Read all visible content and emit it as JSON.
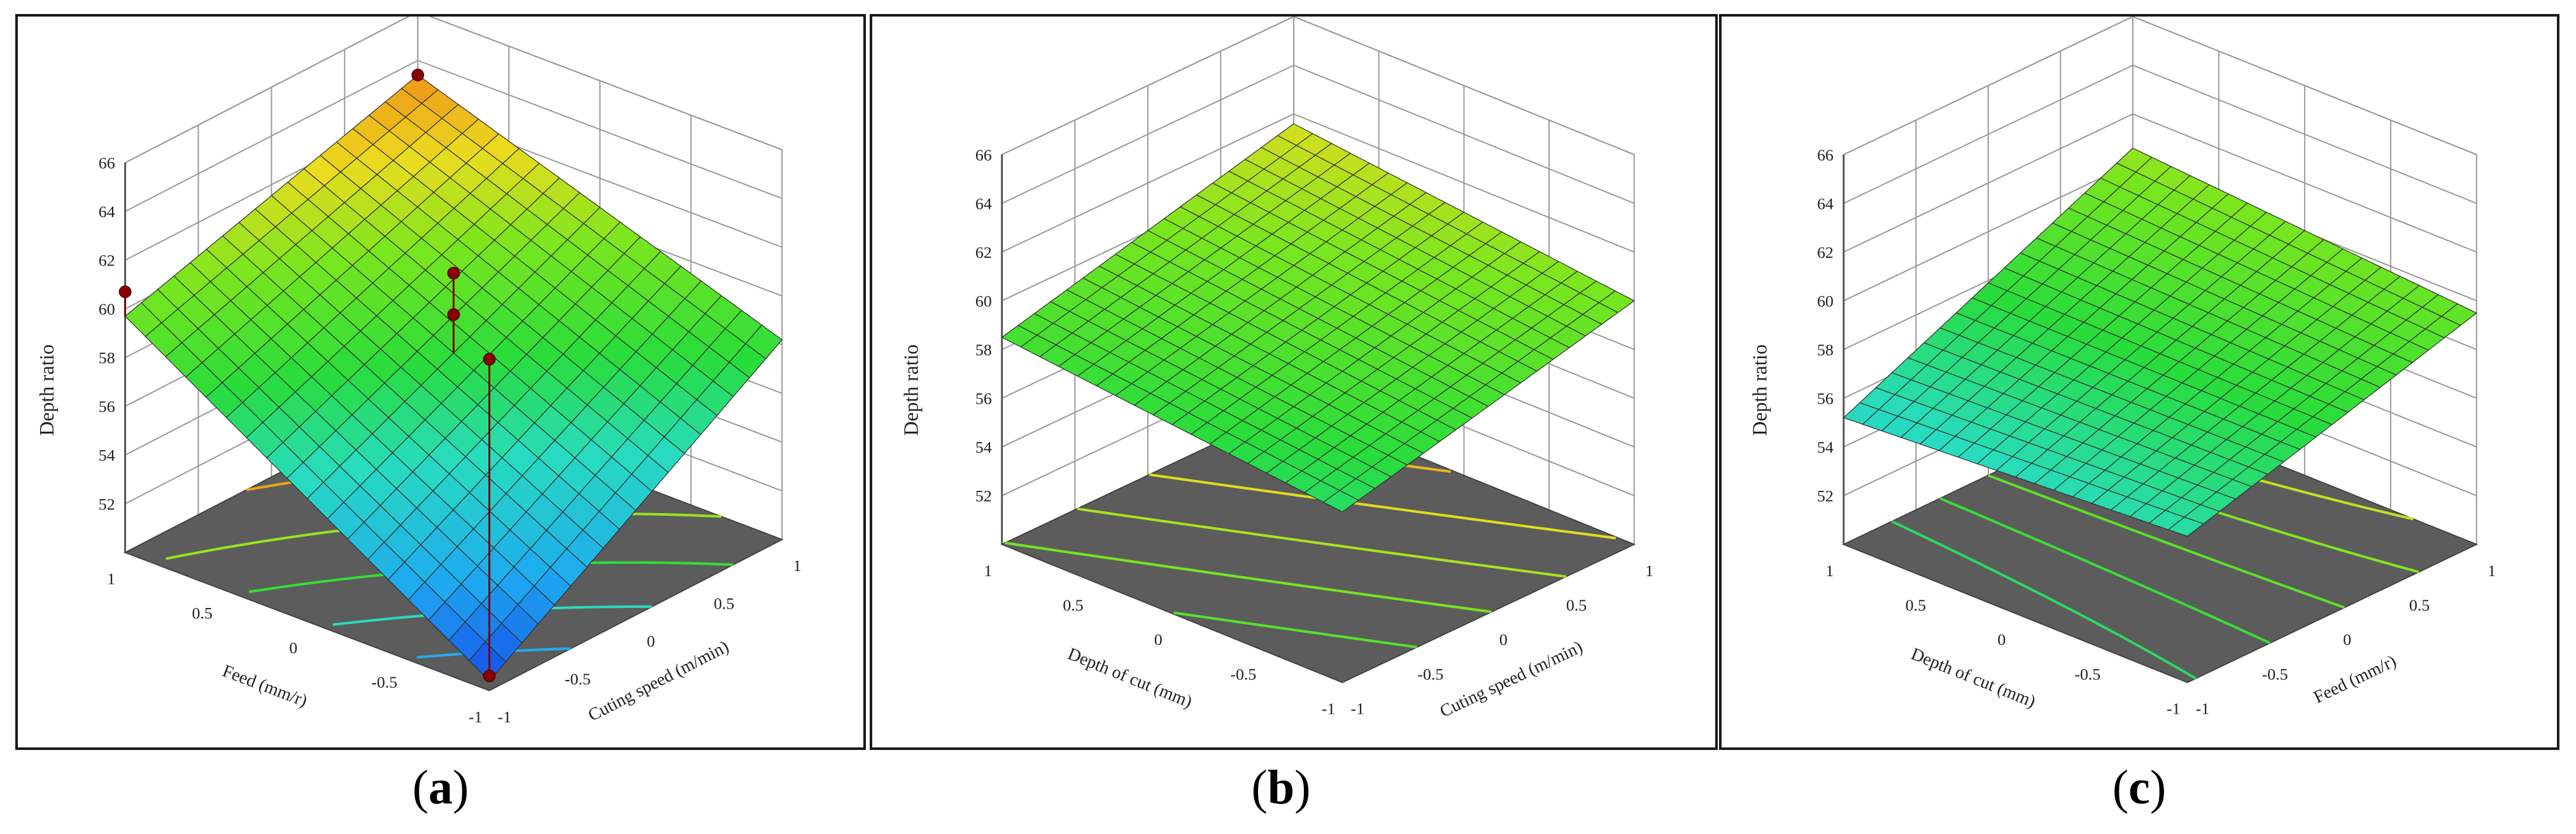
{
  "panels": [
    {
      "caption_letter": "a",
      "chart_data": {
        "type": "surface3d",
        "zlabel": "Depth ratio",
        "zticks": [
          52,
          54,
          56,
          58,
          60,
          62,
          64,
          66
        ],
        "zlim": [
          50,
          66
        ],
        "xlabel": "Feed (mm/r)",
        "xticks": [
          1,
          0.5,
          0,
          -0.5,
          -1
        ],
        "ylabel": "Cuting speed (m/min)",
        "yticks": [
          -1,
          -0.5,
          0,
          0.5,
          1
        ],
        "corners": {
          "x_neg1_y_neg1": 50.4,
          "x_pos1_y_neg1": 59.7,
          "x_neg1_y_pos1": 58.2,
          "x_pos1_y_pos1": 63.4
        },
        "design_points": [
          {
            "x": 1,
            "y": -1,
            "z": 60.7
          },
          {
            "x": -1,
            "y": -1,
            "z": 63.6
          },
          {
            "x": 1,
            "y": 1,
            "z": 63.4
          },
          {
            "x": 0,
            "y": 0,
            "z": 61.2
          },
          {
            "x": 0,
            "y": 0,
            "z": 59.5
          },
          {
            "x": -1,
            "y": -1,
            "z": 50.6
          }
        ],
        "contours": true
      }
    },
    {
      "caption_letter": "b",
      "chart_data": {
        "type": "surface3d",
        "zlabel": "Depth ratio",
        "zticks": [
          52,
          54,
          56,
          58,
          60,
          62,
          64,
          66
        ],
        "zlim": [
          50,
          66
        ],
        "xlabel": "Depth of cut (mm)",
        "xticks": [
          1,
          0.5,
          0,
          -0.5,
          -1
        ],
        "ylabel": "Cuting speed (m/min)",
        "yticks": [
          -1,
          -0.5,
          0,
          0.5,
          1
        ],
        "corners": {
          "x_neg1_y_neg1": 57.0,
          "x_pos1_y_neg1": 58.5,
          "x_neg1_y_pos1": 60.0,
          "x_pos1_y_pos1": 61.6
        },
        "design_points": [],
        "contours": true
      }
    },
    {
      "caption_letter": "c",
      "chart_data": {
        "type": "surface3d",
        "zlabel": "Depth ratio",
        "zticks": [
          52,
          54,
          56,
          58,
          60,
          62,
          64,
          66
        ],
        "zlim": [
          50,
          66
        ],
        "xlabel": "Depth of cut (mm)",
        "xticks": [
          1,
          0.5,
          0,
          -0.5,
          -1
        ],
        "ylabel": "Feed (mm/r)",
        "yticks": [
          -1,
          -0.5,
          0,
          0.5,
          1
        ],
        "corners": {
          "x_neg1_y_neg1": 56.0,
          "x_pos1_y_neg1": 55.2,
          "x_neg1_y_pos1": 59.5,
          "x_pos1_y_pos1": 60.6
        },
        "design_points": [],
        "contours": true
      }
    }
  ],
  "colors": {
    "floor": "#5c5c5c",
    "grid": "#9a9a9a",
    "mesh": "#2e2e2e",
    "point": "#8b0000"
  }
}
